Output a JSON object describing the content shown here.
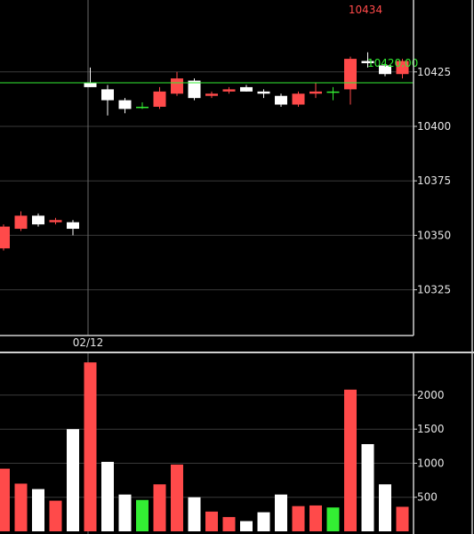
{
  "chart_data": [
    {
      "type": "candlestick",
      "panel": "price",
      "ylim": [
        10304,
        10458
      ],
      "y_ticks": [
        10325,
        10350,
        10375,
        10400,
        10425
      ],
      "y_tick_labels": [
        "10325",
        "10350",
        "10375",
        "10400",
        "10425"
      ],
      "date_label": "02/12",
      "reference_line": {
        "value": 10420,
        "label": "10420.00",
        "color": "#33ee33"
      },
      "high_marker": {
        "value": 10434,
        "label": "10434",
        "color": "#ff4a4a"
      },
      "colors": {
        "up": "#ff4a4a",
        "down": "#ffffff",
        "flat": "#33ee33"
      },
      "candles": [
        {
          "open": 10344,
          "high": 10355,
          "low": 10343,
          "close": 10354,
          "direction": "up"
        },
        {
          "open": 10353,
          "high": 10361,
          "low": 10352,
          "close": 10359,
          "direction": "up"
        },
        {
          "open": 10359,
          "high": 10360,
          "low": 10354,
          "close": 10355,
          "direction": "down"
        },
        {
          "open": 10356,
          "high": 10358,
          "low": 10355,
          "close": 10357,
          "direction": "up"
        },
        {
          "open": 10356,
          "high": 10357,
          "low": 10350,
          "close": 10353,
          "direction": "down"
        },
        {
          "open": 10420,
          "high": 10427,
          "low": 10418,
          "close": 10418,
          "direction": "down"
        },
        {
          "open": 10417,
          "high": 10419,
          "low": 10405,
          "close": 10412,
          "direction": "down"
        },
        {
          "open": 10412,
          "high": 10413,
          "low": 10406,
          "close": 10408,
          "direction": "down"
        },
        {
          "open": 10409,
          "high": 10411,
          "low": 10408,
          "close": 10409,
          "direction": "flat"
        },
        {
          "open": 10409,
          "high": 10418,
          "low": 10408,
          "close": 10416,
          "direction": "up"
        },
        {
          "open": 10415,
          "high": 10425,
          "low": 10414,
          "close": 10422,
          "direction": "up"
        },
        {
          "open": 10421,
          "high": 10422,
          "low": 10412,
          "close": 10413,
          "direction": "down"
        },
        {
          "open": 10414,
          "high": 10416,
          "low": 10413,
          "close": 10415,
          "direction": "up"
        },
        {
          "open": 10416,
          "high": 10418,
          "low": 10415,
          "close": 10417,
          "direction": "up"
        },
        {
          "open": 10418,
          "high": 10419,
          "low": 10416,
          "close": 10416,
          "direction": "down"
        },
        {
          "open": 10416,
          "high": 10417,
          "low": 10413,
          "close": 10415,
          "direction": "down"
        },
        {
          "open": 10414,
          "high": 10415,
          "low": 10409,
          "close": 10410,
          "direction": "down"
        },
        {
          "open": 10410,
          "high": 10416,
          "low": 10409,
          "close": 10415,
          "direction": "up"
        },
        {
          "open": 10415,
          "high": 10420,
          "low": 10413,
          "close": 10416,
          "direction": "up"
        },
        {
          "open": 10416,
          "high": 10418,
          "low": 10412,
          "close": 10416,
          "direction": "flat"
        },
        {
          "open": 10417,
          "high": 10432,
          "low": 10410,
          "close": 10431,
          "direction": "up"
        },
        {
          "open": 10430,
          "high": 10434,
          "low": 10427,
          "close": 10429,
          "direction": "down"
        },
        {
          "open": 10428,
          "high": 10429,
          "low": 10423,
          "close": 10424,
          "direction": "down"
        },
        {
          "open": 10424,
          "high": 10431,
          "low": 10422,
          "close": 10430,
          "direction": "up"
        }
      ]
    },
    {
      "type": "bar",
      "panel": "volume",
      "ylim": [
        0,
        2600
      ],
      "y_ticks": [
        500,
        1000,
        1500,
        2000
      ],
      "y_tick_labels": [
        "500",
        "1000",
        "1500",
        "2000"
      ],
      "values": [
        920,
        700,
        620,
        450,
        1500,
        2480,
        1020,
        540,
        460,
        690,
        980,
        500,
        290,
        210,
        150,
        280,
        540,
        370,
        380,
        350,
        2080,
        1280,
        690,
        360
      ],
      "colors": [
        "#ff4a4a",
        "#ff4a4a",
        "#ffffff",
        "#ff4a4a",
        "#ffffff",
        "#ff4a4a",
        "#ffffff",
        "#ffffff",
        "#33ee33",
        "#ff4a4a",
        "#ff4a4a",
        "#ffffff",
        "#ff4a4a",
        "#ff4a4a",
        "#ffffff",
        "#ffffff",
        "#ffffff",
        "#ff4a4a",
        "#ff4a4a",
        "#33ee33",
        "#ff4a4a",
        "#ffffff",
        "#ffffff",
        "#ff4a4a"
      ]
    }
  ]
}
